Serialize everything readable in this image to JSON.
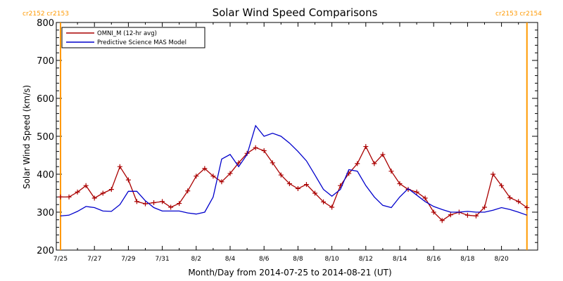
{
  "chart_data": {
    "type": "line",
    "title": "Solar Wind Speed Comparisons",
    "xlabel": "Month/Day from 2014-07-25 to 2014-08-21 (UT)",
    "ylabel": "Solar Wind Speed (km/s)",
    "ylim": [
      200,
      800
    ],
    "xlim": [
      0,
      27.5
    ],
    "yticks": [
      200,
      300,
      400,
      500,
      600,
      700,
      800
    ],
    "xticks": [
      {
        "x": 0,
        "label": "7/25"
      },
      {
        "x": 2,
        "label": "7/27"
      },
      {
        "x": 4,
        "label": "7/29"
      },
      {
        "x": 6,
        "label": "7/31"
      },
      {
        "x": 8,
        "label": "8/2"
      },
      {
        "x": 10,
        "label": "8/4"
      },
      {
        "x": 12,
        "label": "8/6"
      },
      {
        "x": 14,
        "label": "8/8"
      },
      {
        "x": 16,
        "label": "8/10"
      },
      {
        "x": 18,
        "label": "8/12"
      },
      {
        "x": 20,
        "label": "8/14"
      },
      {
        "x": 22,
        "label": "8/16"
      },
      {
        "x": 24,
        "label": "8/18"
      },
      {
        "x": 26,
        "label": "8/20"
      }
    ],
    "grid": false,
    "legend_position": "top-left",
    "carrington_markers": [
      {
        "x": 0,
        "label": "cr2152 cr2153",
        "label_side": "top-left"
      },
      {
        "x": 27.5,
        "label": "cr2153 cr2154",
        "label_side": "top-right"
      }
    ],
    "series": [
      {
        "name": "OMNI_M (12-hr avg)",
        "color": "#aa0000",
        "marker": "plus",
        "x": [
          0,
          0.5,
          1,
          1.5,
          2,
          2.5,
          3,
          3.5,
          4,
          4.5,
          5,
          5.5,
          6,
          6.5,
          7,
          7.5,
          8,
          8.5,
          9,
          9.5,
          10,
          10.5,
          11,
          11.5,
          12,
          12.5,
          13,
          13.5,
          14,
          14.5,
          15,
          15.5,
          16,
          16.5,
          17,
          17.5,
          18,
          18.5,
          19,
          19.5,
          20,
          20.5,
          21,
          21.5,
          22,
          22.5,
          23,
          23.5,
          24,
          24.5,
          25,
          25.5,
          26,
          26.5,
          27,
          27.5
        ],
        "values": [
          340,
          340,
          353,
          370,
          337,
          350,
          360,
          420,
          385,
          328,
          322,
          325,
          328,
          313,
          323,
          356,
          395,
          415,
          395,
          380,
          402,
          430,
          455,
          470,
          462,
          430,
          398,
          375,
          362,
          373,
          350,
          327,
          313,
          370,
          402,
          428,
          473,
          428,
          452,
          408,
          375,
          360,
          353,
          337,
          300,
          278,
          293,
          300,
          292,
          290,
          313,
          400,
          370,
          338,
          328,
          312
        ]
      },
      {
        "name": "Predictive Science MAS Model",
        "color": "#0000cc",
        "marker": "none",
        "x": [
          0,
          0.5,
          1,
          1.5,
          2,
          2.5,
          3,
          3.5,
          4,
          4.5,
          5,
          5.5,
          6,
          6.5,
          7,
          7.5,
          8,
          8.5,
          9,
          9.5,
          10,
          10.5,
          11,
          11.5,
          12,
          12.5,
          13,
          13.5,
          14,
          14.5,
          15,
          15.5,
          16,
          16.5,
          17,
          17.5,
          18,
          18.5,
          19,
          19.5,
          20,
          20.5,
          21,
          21.5,
          22,
          22.5,
          23,
          23.5,
          24,
          24.5,
          25,
          25.5,
          26,
          26.5,
          27,
          27.5
        ],
        "values": [
          290,
          292,
          302,
          315,
          312,
          303,
          302,
          320,
          355,
          355,
          330,
          312,
          303,
          303,
          303,
          298,
          295,
          300,
          340,
          440,
          452,
          420,
          452,
          528,
          500,
          508,
          500,
          482,
          460,
          435,
          398,
          360,
          342,
          360,
          412,
          408,
          370,
          340,
          318,
          312,
          340,
          362,
          345,
          328,
          315,
          307,
          300,
          300,
          302,
          300,
          300,
          305,
          312,
          307,
          300,
          292
        ]
      }
    ]
  }
}
